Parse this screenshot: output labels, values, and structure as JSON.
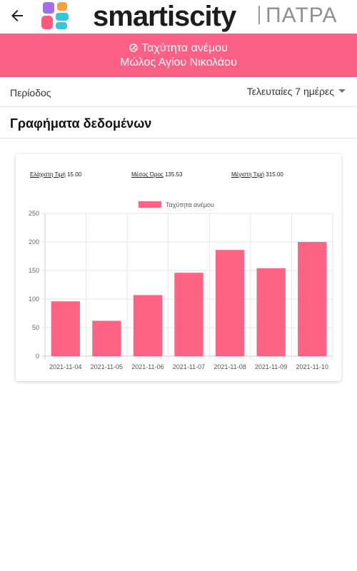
{
  "appbar": {
    "brand": "smartiscity",
    "city": "ΠΑΤΡΑ"
  },
  "banner": {
    "title": "Ταχύτητα ανέμου",
    "station": "Μώλος Αγίου Νικολάου"
  },
  "period": {
    "label": "Περίοδος",
    "selected": "Τελευταίες 7 ημέρες"
  },
  "section": {
    "title": "Γραφήματα δεδομένων"
  },
  "stats": {
    "min_label": "Ελάχιστη Τιμή",
    "min_value": "15.00",
    "avg_label": "Μέσος Όρος",
    "avg_value": "135.53",
    "max_label": "Μέγιστη Τιμή",
    "max_value": "315.00"
  },
  "colors": {
    "accent": "#fc6185",
    "bar": "#ff6384"
  },
  "chart_data": {
    "type": "bar",
    "categories": [
      "2021-11-04",
      "2021-11-05",
      "2021-11-06",
      "2021-11-07",
      "2021-11-08",
      "2021-11-09",
      "2021-11-10"
    ],
    "series": [
      {
        "name": "Ταχύτητα ανέμου",
        "values": [
          96,
          62,
          107,
          146,
          186,
          154,
          200
        ]
      }
    ],
    "ylim": [
      0,
      250
    ],
    "yticks": [
      0,
      50,
      100,
      150,
      200,
      250
    ],
    "grid": true,
    "legend": "top-center"
  }
}
